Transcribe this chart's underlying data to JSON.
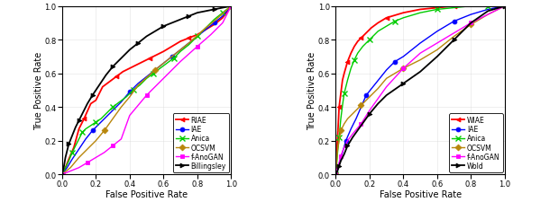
{
  "left_chart": {
    "xlabel": "False Positive Rate",
    "ylabel": "True Positive Rate",
    "curves": {
      "RIAE": {
        "color": "red",
        "marker": "<",
        "marker_every": 5,
        "x": [
          0.0,
          0.02,
          0.04,
          0.07,
          0.1,
          0.13,
          0.17,
          0.2,
          0.24,
          0.28,
          0.32,
          0.36,
          0.4,
          0.44,
          0.48,
          0.52,
          0.56,
          0.6,
          0.65,
          0.7,
          0.75,
          0.8,
          0.85,
          0.9,
          0.95,
          1.0
        ],
        "y": [
          0.0,
          0.04,
          0.09,
          0.16,
          0.27,
          0.33,
          0.42,
          0.44,
          0.52,
          0.55,
          0.58,
          0.61,
          0.63,
          0.65,
          0.67,
          0.69,
          0.71,
          0.73,
          0.76,
          0.79,
          0.81,
          0.83,
          0.86,
          0.89,
          0.93,
          1.0
        ]
      },
      "IAE": {
        "color": "blue",
        "marker": "o",
        "marker_every": 5,
        "x": [
          0.0,
          0.03,
          0.06,
          0.1,
          0.14,
          0.18,
          0.22,
          0.26,
          0.3,
          0.35,
          0.4,
          0.45,
          0.5,
          0.55,
          0.6,
          0.65,
          0.7,
          0.75,
          0.8,
          0.85,
          0.9,
          0.95,
          1.0
        ],
        "y": [
          0.0,
          0.04,
          0.09,
          0.15,
          0.21,
          0.26,
          0.3,
          0.34,
          0.38,
          0.43,
          0.49,
          0.54,
          0.58,
          0.62,
          0.66,
          0.7,
          0.74,
          0.78,
          0.82,
          0.86,
          0.9,
          0.94,
          1.0
        ]
      },
      "Anica": {
        "color": "#00cc00",
        "marker": "x",
        "marker_every": 3,
        "x": [
          0.0,
          0.02,
          0.04,
          0.06,
          0.08,
          0.1,
          0.12,
          0.14,
          0.17,
          0.2,
          0.23,
          0.26,
          0.3,
          0.34,
          0.38,
          0.42,
          0.46,
          0.5,
          0.54,
          0.58,
          0.62,
          0.66,
          0.7,
          0.75,
          0.8,
          0.85,
          0.9,
          0.95,
          1.0
        ],
        "y": [
          0.0,
          0.04,
          0.08,
          0.13,
          0.17,
          0.21,
          0.25,
          0.27,
          0.29,
          0.31,
          0.33,
          0.36,
          0.4,
          0.43,
          0.46,
          0.5,
          0.53,
          0.57,
          0.6,
          0.63,
          0.66,
          0.69,
          0.73,
          0.77,
          0.82,
          0.87,
          0.92,
          0.96,
          1.0
        ]
      },
      "OCSVM": {
        "color": "#b8860b",
        "marker": "D",
        "marker_every": 5,
        "x": [
          0.0,
          0.05,
          0.1,
          0.15,
          0.2,
          0.25,
          0.3,
          0.35,
          0.4,
          0.45,
          0.55,
          0.65,
          0.75,
          0.85,
          0.9,
          1.0
        ],
        "y": [
          0.0,
          0.04,
          0.1,
          0.15,
          0.2,
          0.26,
          0.33,
          0.4,
          0.46,
          0.53,
          0.62,
          0.7,
          0.78,
          0.87,
          0.91,
          1.0
        ]
      },
      "f-AnoGAN": {
        "color": "magenta",
        "marker": "s",
        "marker_every": 3,
        "x": [
          0.0,
          0.05,
          0.1,
          0.15,
          0.2,
          0.25,
          0.3,
          0.35,
          0.4,
          0.5,
          0.6,
          0.7,
          0.8,
          0.88,
          0.95,
          1.0
        ],
        "y": [
          0.0,
          0.02,
          0.04,
          0.07,
          0.1,
          0.13,
          0.17,
          0.21,
          0.35,
          0.47,
          0.57,
          0.67,
          0.76,
          0.83,
          0.9,
          1.0
        ]
      },
      "Billingsley": {
        "color": "black",
        "marker": ">",
        "marker_every": 3,
        "x": [
          0.0,
          0.01,
          0.02,
          0.04,
          0.06,
          0.08,
          0.1,
          0.12,
          0.15,
          0.18,
          0.22,
          0.26,
          0.3,
          0.35,
          0.4,
          0.45,
          0.5,
          0.55,
          0.6,
          0.65,
          0.7,
          0.75,
          0.8,
          0.85,
          0.9,
          0.95,
          1.0
        ],
        "y": [
          0.0,
          0.04,
          0.1,
          0.18,
          0.23,
          0.28,
          0.32,
          0.36,
          0.42,
          0.47,
          0.53,
          0.59,
          0.64,
          0.69,
          0.74,
          0.78,
          0.82,
          0.85,
          0.88,
          0.9,
          0.92,
          0.94,
          0.96,
          0.97,
          0.98,
          0.99,
          1.0
        ]
      }
    }
  },
  "right_chart": {
    "xlabel": "False Positive Rate",
    "ylabel": "True Positive Rate",
    "curves": {
      "WIAE": {
        "color": "red",
        "marker": "<",
        "marker_every": 4,
        "x": [
          0.0,
          0.005,
          0.01,
          0.015,
          0.02,
          0.03,
          0.04,
          0.05,
          0.07,
          0.09,
          0.11,
          0.13,
          0.15,
          0.18,
          0.21,
          0.25,
          0.3,
          0.4,
          0.5,
          0.6,
          0.7,
          0.8,
          0.9,
          1.0
        ],
        "y": [
          0.0,
          0.1,
          0.2,
          0.3,
          0.4,
          0.48,
          0.56,
          0.6,
          0.67,
          0.72,
          0.76,
          0.79,
          0.81,
          0.84,
          0.87,
          0.9,
          0.93,
          0.96,
          0.98,
          0.99,
          1.0,
          1.0,
          1.0,
          1.0
        ]
      },
      "IAE": {
        "color": "blue",
        "marker": "o",
        "marker_every": 4,
        "x": [
          0.0,
          0.01,
          0.02,
          0.04,
          0.06,
          0.09,
          0.12,
          0.15,
          0.18,
          0.22,
          0.26,
          0.3,
          0.35,
          0.4,
          0.5,
          0.6,
          0.7,
          0.8,
          0.9,
          1.0
        ],
        "y": [
          0.0,
          0.02,
          0.06,
          0.13,
          0.2,
          0.27,
          0.33,
          0.4,
          0.47,
          0.52,
          0.57,
          0.62,
          0.67,
          0.7,
          0.78,
          0.85,
          0.91,
          0.95,
          0.98,
          1.0
        ]
      },
      "Anica": {
        "color": "#00cc00",
        "marker": "x",
        "marker_every": 3,
        "x": [
          0.0,
          0.005,
          0.01,
          0.02,
          0.03,
          0.04,
          0.05,
          0.07,
          0.09,
          0.11,
          0.13,
          0.16,
          0.2,
          0.25,
          0.3,
          0.35,
          0.4,
          0.5,
          0.6,
          0.7,
          0.8,
          0.9,
          1.0
        ],
        "y": [
          0.0,
          0.05,
          0.12,
          0.22,
          0.33,
          0.41,
          0.48,
          0.56,
          0.63,
          0.68,
          0.72,
          0.76,
          0.8,
          0.85,
          0.88,
          0.91,
          0.93,
          0.96,
          0.98,
          0.99,
          1.0,
          1.0,
          1.0
        ]
      },
      "OCSVM": {
        "color": "#b8860b",
        "marker": "D",
        "marker_every": 4,
        "x": [
          0.0,
          0.005,
          0.01,
          0.02,
          0.03,
          0.05,
          0.07,
          0.1,
          0.15,
          0.2,
          0.25,
          0.3,
          0.4,
          0.5,
          0.6,
          0.7,
          0.8,
          0.9,
          1.0
        ],
        "y": [
          0.0,
          0.07,
          0.14,
          0.2,
          0.26,
          0.3,
          0.33,
          0.36,
          0.41,
          0.46,
          0.51,
          0.57,
          0.63,
          0.68,
          0.74,
          0.82,
          0.89,
          0.95,
          1.0
        ]
      },
      "f-AnoGAN": {
        "color": "magenta",
        "marker": "s",
        "marker_every": 4,
        "x": [
          0.0,
          0.005,
          0.01,
          0.02,
          0.03,
          0.05,
          0.07,
          0.1,
          0.15,
          0.2,
          0.25,
          0.3,
          0.4,
          0.5,
          0.6,
          0.7,
          0.8,
          0.9,
          1.0
        ],
        "y": [
          0.0,
          0.02,
          0.04,
          0.07,
          0.11,
          0.16,
          0.2,
          0.24,
          0.3,
          0.38,
          0.45,
          0.52,
          0.63,
          0.72,
          0.78,
          0.84,
          0.9,
          0.95,
          1.0
        ]
      },
      "Wold": {
        "color": "black",
        "marker": ">",
        "marker_every": 3,
        "x": [
          0.0,
          0.005,
          0.01,
          0.02,
          0.03,
          0.05,
          0.07,
          0.1,
          0.15,
          0.2,
          0.25,
          0.3,
          0.4,
          0.5,
          0.6,
          0.7,
          0.8,
          0.9,
          1.0
        ],
        "y": [
          0.0,
          0.01,
          0.02,
          0.05,
          0.08,
          0.12,
          0.17,
          0.22,
          0.29,
          0.36,
          0.42,
          0.47,
          0.54,
          0.61,
          0.7,
          0.8,
          0.9,
          0.97,
          1.0
        ]
      }
    }
  },
  "figsize": [
    6.2,
    2.26
  ],
  "dpi": 100
}
